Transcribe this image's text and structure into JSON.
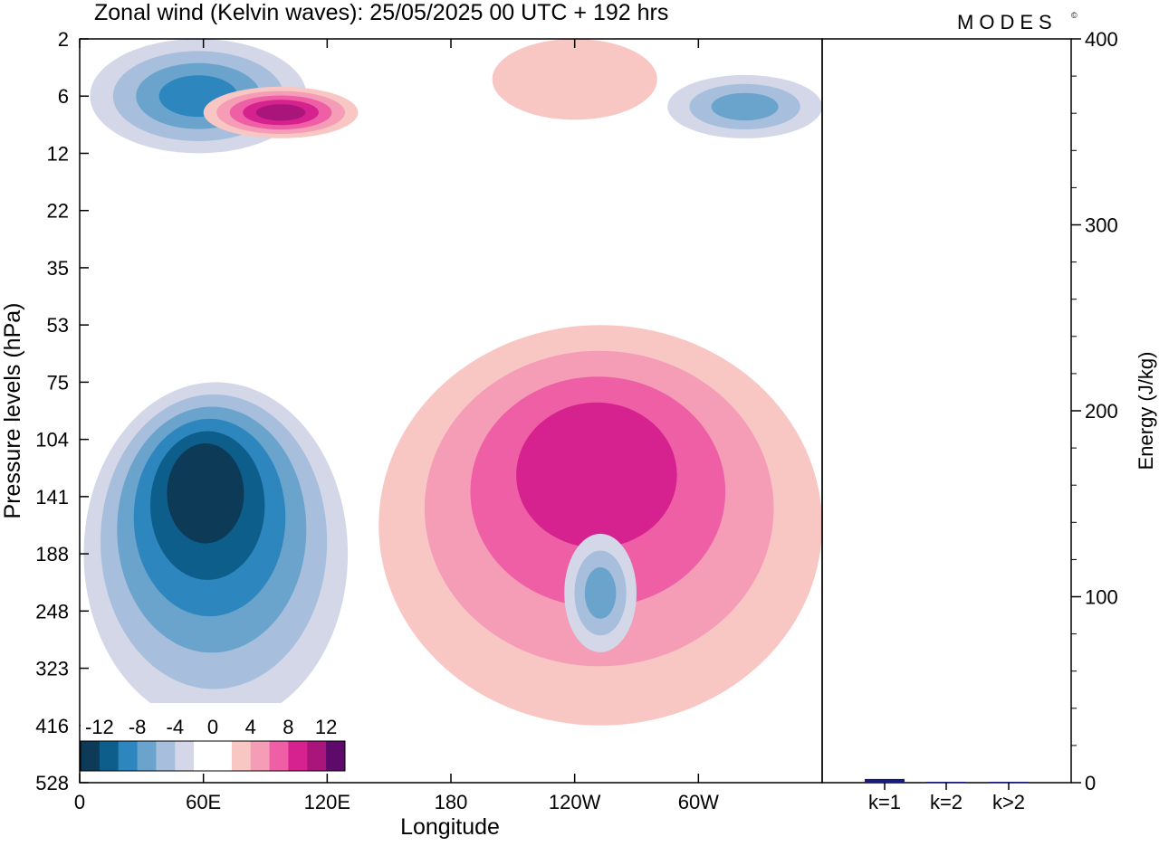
{
  "title": "Zonal wind (Kelvin waves):  25/05/2025  00 UTC  + 192 hrs",
  "brand": "MODES",
  "brand_mark": "©",
  "chart_data": [
    {
      "type": "heatmap",
      "panel": "hovmoller",
      "title": "Zonal wind (Kelvin waves):  25/05/2025  00 UTC  + 192 hrs",
      "xlabel": "Longitude",
      "ylabel": "Pressure levels (hPa)",
      "x_ticks": [
        {
          "lon": 0,
          "label": "0"
        },
        {
          "lon": 60,
          "label": "60E"
        },
        {
          "lon": 120,
          "label": "120E"
        },
        {
          "lon": 180,
          "label": "180"
        },
        {
          "lon": 240,
          "label": "120W"
        },
        {
          "lon": 300,
          "label": "60W"
        }
      ],
      "xlim": [
        0,
        360
      ],
      "y_levels": [
        "2",
        "6",
        "12",
        "22",
        "35",
        "53",
        "75",
        "104",
        "141",
        "188",
        "248",
        "323",
        "416",
        "528"
      ],
      "y_scale": "log",
      "ylim": [
        2,
        528
      ],
      "colorbar": {
        "labels": [
          "-12",
          "-8",
          "-4",
          "0",
          "4",
          "8",
          "12"
        ],
        "colors": [
          "#0d3a56",
          "#0e5e8c",
          "#2d86bd",
          "#6aa3cc",
          "#a7bfdc",
          "#d3d7e8",
          "#ffffff",
          "#ffffff",
          "#f8c7c4",
          "#f59cb7",
          "#ee5fa6",
          "#d5228f",
          "#a9157a",
          "#5d0a6a"
        ],
        "levels": [
          -14,
          -12,
          -10,
          -8,
          -6,
          -4,
          -2,
          0,
          2,
          4,
          6,
          8,
          10,
          12,
          14
        ]
      },
      "features": [
        {
          "sign": "negative",
          "lon": [
            2,
            130
          ],
          "p": [
            75,
            416
          ],
          "peak": -13,
          "peak_lon": 60,
          "peak_p": 130
        },
        {
          "sign": "positive",
          "lon": [
            145,
            360
          ],
          "p": [
            53,
            416
          ],
          "peak": 9,
          "peak_lon": 250,
          "peak_p": 115
        },
        {
          "sign": "negative",
          "lon": [
            5,
            110
          ],
          "p": [
            2,
            12
          ],
          "peak": -9
        },
        {
          "sign": "positive",
          "lon": [
            60,
            135
          ],
          "p": [
            5,
            10
          ],
          "peak": 11
        },
        {
          "sign": "positive",
          "lon": [
            200,
            280
          ],
          "p": [
            2,
            8
          ],
          "peak": 3
        },
        {
          "sign": "negative",
          "lon": [
            285,
            360
          ],
          "p": [
            4,
            10
          ],
          "peak": -7
        },
        {
          "sign": "negative",
          "lon": [
            235,
            270
          ],
          "p": [
            170,
            300
          ],
          "peak": -6
        }
      ]
    },
    {
      "type": "bar",
      "panel": "energy",
      "categories": [
        "k=1",
        "k=2",
        "k>2"
      ],
      "values": [
        2,
        0.5,
        0.5
      ],
      "ylabel": "Energy (J/kg)",
      "ylim": [
        0,
        400
      ],
      "yticks": [
        "0",
        "100",
        "200",
        "300",
        "400"
      ],
      "color": "#1a1a7a"
    }
  ]
}
